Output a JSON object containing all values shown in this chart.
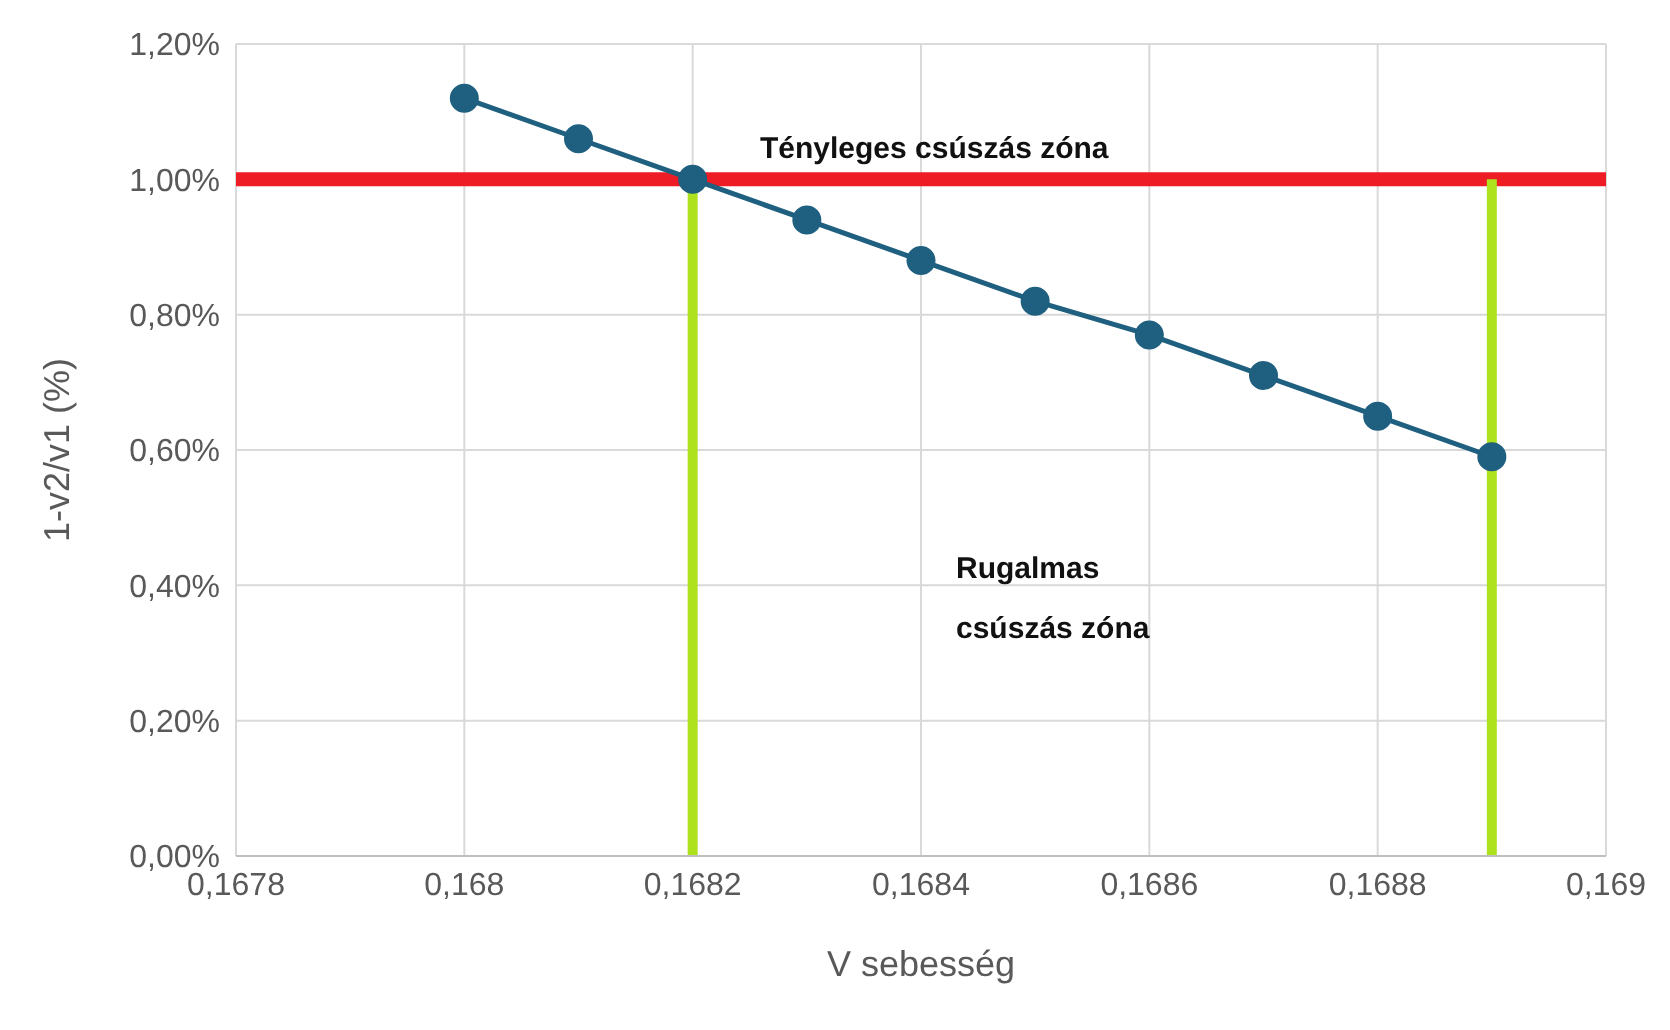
{
  "chart_data": {
    "type": "line",
    "xlabel": "V sebesség",
    "ylabel": "1-v2/v1 (%)",
    "x": [
      0.168,
      0.1681,
      0.1682,
      0.1683,
      0.1684,
      0.1685,
      0.1686,
      0.1687,
      0.1688,
      0.1689
    ],
    "series": [
      {
        "color": "#1f5f7f",
        "values": [
          1.12,
          1.06,
          1.0,
          0.94,
          0.88,
          0.82,
          0.77,
          0.71,
          0.65,
          0.59
        ]
      }
    ],
    "xlim": [
      0.1678,
      0.169
    ],
    "xticks": [
      {
        "value": 0.1678,
        "label": "0,1678"
      },
      {
        "value": 0.168,
        "label": "0,168"
      },
      {
        "value": 0.1682,
        "label": "0,1682"
      },
      {
        "value": 0.1684,
        "label": "0,1684"
      },
      {
        "value": 0.1686,
        "label": "0,1686"
      },
      {
        "value": 0.1688,
        "label": "0,1688"
      },
      {
        "value": 0.169,
        "label": "0,169"
      }
    ],
    "ylim": [
      0,
      1.2
    ],
    "yticks": [
      {
        "value": 0,
        "label": "0,00%"
      },
      {
        "value": 0.2,
        "label": "0,20%"
      },
      {
        "value": 0.4,
        "label": "0,40%"
      },
      {
        "value": 0.6,
        "label": "0,60%"
      },
      {
        "value": 0.8,
        "label": "0,80%"
      },
      {
        "value": 1.0,
        "label": "1,00%"
      },
      {
        "value": 1.2,
        "label": "1,20%"
      }
    ],
    "grid": true,
    "marker": "circle",
    "line_style": "solid",
    "legend": false,
    "ref_lines": [
      {
        "axis": "y",
        "value": 1.0,
        "color": "#ee1c25"
      },
      {
        "axis": "x",
        "value": 0.1682,
        "color": "#aee11e"
      },
      {
        "axis": "x",
        "value": 0.1689,
        "color": "#aee11e"
      }
    ],
    "annotations": [
      "Tényleges csúszás zóna",
      "Rugalmas\ncsúszás zóna"
    ]
  }
}
